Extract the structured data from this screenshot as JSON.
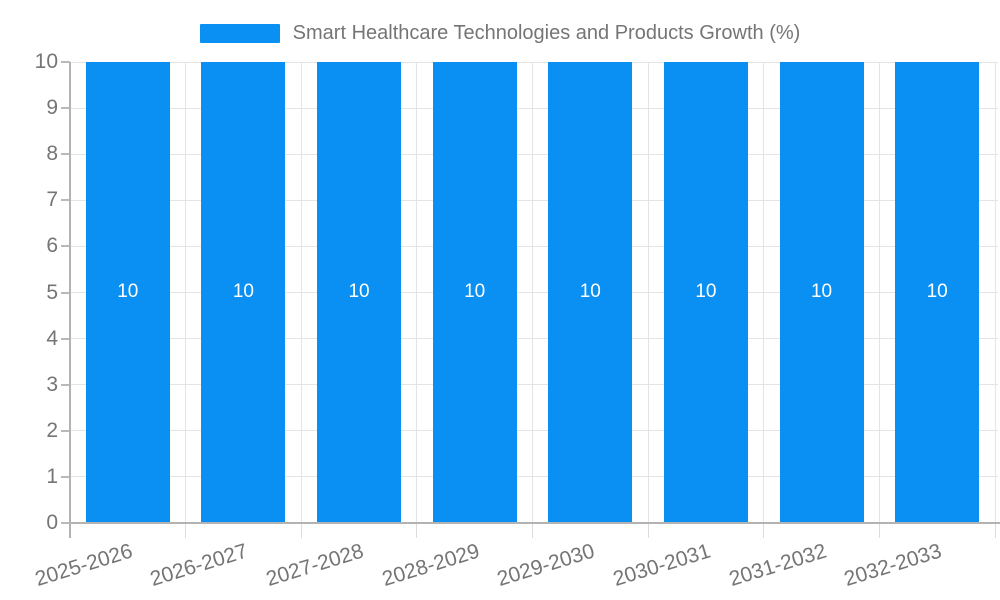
{
  "chart_data": {
    "type": "bar",
    "title": "Smart Healthcare Technologies and Products Growth (%)",
    "categories": [
      "2025-2026",
      "2026-2027",
      "2027-2028",
      "2028-2029",
      "2029-2030",
      "2030-2031",
      "2031-2032",
      "2032-2033"
    ],
    "values": [
      10,
      10,
      10,
      10,
      10,
      10,
      10,
      10
    ],
    "bar_value_labels": [
      "10",
      "10",
      "10",
      "10",
      "10",
      "10",
      "10",
      "10"
    ],
    "xlabel": "",
    "ylabel": "",
    "ylim": [
      0,
      10
    ],
    "yticks": [
      "0",
      "1",
      "2",
      "3",
      "4",
      "5",
      "6",
      "7",
      "8",
      "9",
      "10"
    ],
    "grid": true,
    "legend_position": "top"
  },
  "legend": {
    "label": "Smart Healthcare Technologies and Products Growth (%)"
  },
  "colors": {
    "bar": "#0a8ff2",
    "grid": "#e4e4e4",
    "axis": "#b3b3b3",
    "tick_text": "#757575",
    "bar_label_text": "#ffffff"
  }
}
